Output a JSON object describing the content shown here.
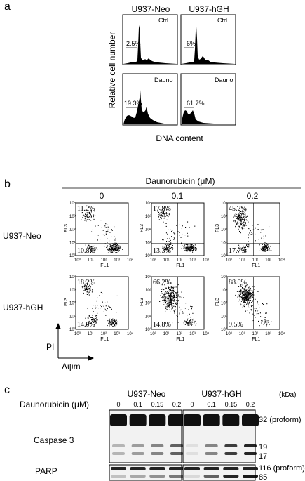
{
  "panel_a": {
    "letter": "a",
    "columns": [
      "U937-Neo",
      "U937-hGH"
    ],
    "rows": [
      "Ctrl",
      "Dauno"
    ],
    "percents": [
      [
        "2.5%",
        "6%"
      ],
      [
        "19.3%",
        "61.7%"
      ]
    ],
    "y_label": "Relative cell number",
    "x_label": "DNA content"
  },
  "panel_b": {
    "letter": "b",
    "title": "Daunorubicin (μM)",
    "doses": [
      "0",
      "0.1",
      "0.2"
    ],
    "rows": [
      "U937-Neo",
      "U937-hGH"
    ],
    "upper_left": [
      [
        "11.2%",
        "17.8%",
        "45.2%"
      ],
      [
        "18.2%",
        "66.2%",
        "88.0%"
      ]
    ],
    "lower_left": [
      [
        "10.8%",
        "13.3%",
        "17.7%"
      ],
      [
        "14.0%",
        "14.8%",
        "9.5%"
      ]
    ],
    "axis_fl1": "FL1",
    "axis_fl3": "FL3",
    "ticks": [
      "10⁰",
      "10¹",
      "10²",
      "10³",
      "10⁴"
    ],
    "pi_label": "PI",
    "psi_label": "Δψm"
  },
  "panel_c": {
    "letter": "c",
    "groups": [
      "U937-Neo",
      "U937-hGH"
    ],
    "kda": "(kDa)",
    "dose_label": "Daunorubicin (μM)",
    "doses": [
      "0",
      "0.1",
      "0.15",
      "0.2"
    ],
    "caspase_label": "Caspase 3",
    "parp_label": "PARP",
    "bands_caspase": [
      "32 (proform)",
      "19",
      "17"
    ],
    "bands_parp": [
      "116 (proform)",
      "85"
    ]
  }
}
